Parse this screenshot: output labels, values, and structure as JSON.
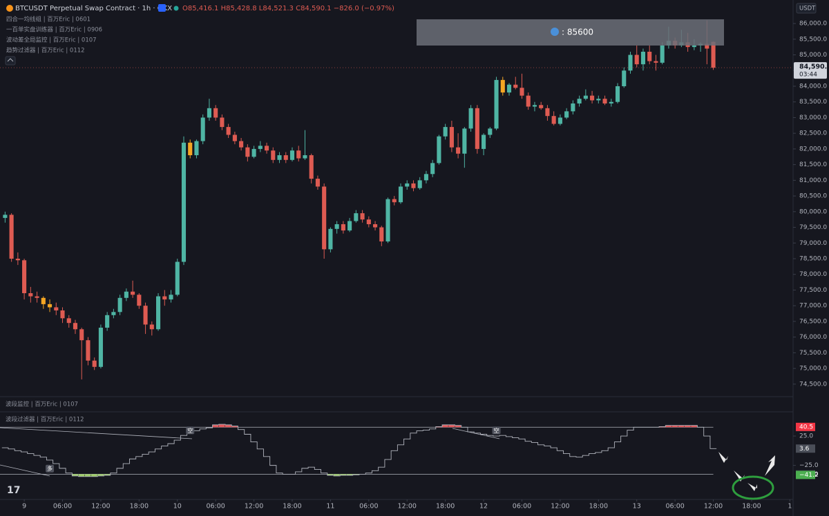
{
  "chart_data": [
    {
      "type": "candlestick",
      "title": "BTCUSDT Perpetual Swap Contract · 1h · OKX",
      "ohlc_summary": "O85,416.1 H85,428.8 L84,521.3 C84,590.1 −826.0 (−0.97%)",
      "indicators": [
        "四合一均线组 | 百万Eric | 0601",
        "一百单实盘训练器 | 百万Eric | 0906",
        "波动差全局监控 | 百万Eric | 0107",
        "趋势过滤器 | 百万Eric | 0112"
      ],
      "currency": "USDT",
      "note": ": 85600",
      "last_price": {
        "value": 84590.1,
        "label": "84,590.1"
      },
      "countdown": "03:44",
      "up_color": "#4fb5a4",
      "down_color": "#de5b52",
      "highlight_candles": [
        6,
        7,
        29,
        78
      ],
      "highlight_color": "#f5a623",
      "candles": [
        [
          79800,
          80000,
          79650,
          79900
        ],
        [
          79900,
          79950,
          78400,
          78500
        ],
        [
          78500,
          78700,
          78300,
          78450
        ],
        [
          78450,
          78500,
          77200,
          77400
        ],
        [
          77400,
          77600,
          77100,
          77300
        ],
        [
          77300,
          77450,
          77100,
          77250
        ],
        [
          77250,
          77300,
          76900,
          77050
        ],
        [
          77050,
          77200,
          76800,
          76950
        ],
        [
          76950,
          77100,
          76700,
          76850
        ],
        [
          76850,
          76950,
          76450,
          76600
        ],
        [
          76600,
          76700,
          76300,
          76450
        ],
        [
          76450,
          76550,
          76100,
          76250
        ],
        [
          76250,
          76300,
          74650,
          75900
        ],
        [
          75900,
          76000,
          75100,
          75250
        ],
        [
          75250,
          75350,
          74950,
          75050
        ],
        [
          75050,
          76400,
          75000,
          76300
        ],
        [
          76300,
          76800,
          76200,
          76700
        ],
        [
          76700,
          76900,
          76600,
          76800
        ],
        [
          76800,
          77350,
          76700,
          77250
        ],
        [
          77250,
          77550,
          77150,
          77450
        ],
        [
          77450,
          77800,
          77250,
          77350
        ],
        [
          77350,
          77400,
          76900,
          77000
        ],
        [
          77000,
          77100,
          76100,
          76400
        ],
        [
          76400,
          76500,
          76050,
          76250
        ],
        [
          76250,
          77400,
          76200,
          77300
        ],
        [
          77300,
          77500,
          77000,
          77200
        ],
        [
          77200,
          77500,
          77100,
          77350
        ],
        [
          77350,
          78500,
          77300,
          78400
        ],
        [
          78400,
          82400,
          78300,
          82200
        ],
        [
          82200,
          82300,
          81700,
          81800
        ],
        [
          81800,
          82300,
          81700,
          82250
        ],
        [
          82250,
          83100,
          82150,
          83000
        ],
        [
          83000,
          83600,
          82900,
          83300
        ],
        [
          83300,
          83400,
          82900,
          83000
        ],
        [
          83000,
          83100,
          82600,
          82700
        ],
        [
          82700,
          82800,
          82350,
          82450
        ],
        [
          82450,
          82550,
          82150,
          82250
        ],
        [
          82250,
          82350,
          81950,
          82050
        ],
        [
          82050,
          82150,
          81600,
          81750
        ],
        [
          81750,
          82100,
          81700,
          82000
        ],
        [
          82000,
          82250,
          81900,
          82100
        ],
        [
          82100,
          82200,
          81850,
          81950
        ],
        [
          81950,
          82050,
          81550,
          81650
        ],
        [
          81650,
          81900,
          81550,
          81800
        ],
        [
          81800,
          81900,
          81550,
          81650
        ],
        [
          81650,
          82050,
          81600,
          81950
        ],
        [
          81950,
          82100,
          81600,
          81700
        ],
        [
          81700,
          82600,
          81650,
          81800
        ],
        [
          81800,
          81850,
          80900,
          81050
        ],
        [
          81050,
          81150,
          80700,
          80800
        ],
        [
          80800,
          80900,
          78500,
          78800
        ],
        [
          78800,
          79500,
          78700,
          79450
        ],
        [
          79450,
          79700,
          79300,
          79600
        ],
        [
          79600,
          79700,
          79300,
          79400
        ],
        [
          79400,
          79800,
          79350,
          79700
        ],
        [
          79700,
          80050,
          79650,
          79950
        ],
        [
          79950,
          80050,
          79650,
          79750
        ],
        [
          79750,
          79850,
          79500,
          79600
        ],
        [
          79600,
          79700,
          79400,
          79500
        ],
        [
          79500,
          79550,
          78900,
          79050
        ],
        [
          79050,
          80450,
          79000,
          80400
        ],
        [
          80400,
          80500,
          80200,
          80300
        ],
        [
          80300,
          80900,
          80250,
          80800
        ],
        [
          80800,
          81000,
          80700,
          80900
        ],
        [
          80900,
          81000,
          80650,
          80750
        ],
        [
          80750,
          81100,
          80700,
          81000
        ],
        [
          81000,
          81300,
          80900,
          81200
        ],
        [
          81200,
          81650,
          81100,
          81550
        ],
        [
          81550,
          82450,
          81500,
          82400
        ],
        [
          82400,
          82800,
          82300,
          82700
        ],
        [
          82700,
          82900,
          81900,
          82050
        ],
        [
          82050,
          82500,
          81700,
          81850
        ],
        [
          81850,
          82700,
          81400,
          82650
        ],
        [
          82650,
          83400,
          82550,
          83300
        ],
        [
          83300,
          83400,
          81850,
          82000
        ],
        [
          82000,
          82500,
          81800,
          82450
        ],
        [
          82450,
          82700,
          82350,
          82650
        ],
        [
          82650,
          84300,
          82600,
          84200
        ],
        [
          84200,
          84300,
          83700,
          83800
        ],
        [
          83800,
          84100,
          83700,
          84050
        ],
        [
          84050,
          84300,
          83900,
          83950
        ],
        [
          83950,
          84400,
          83600,
          83700
        ],
        [
          83700,
          83800,
          83250,
          83350
        ],
        [
          83350,
          83500,
          83200,
          83400
        ],
        [
          83400,
          83500,
          83250,
          83300
        ],
        [
          83300,
          83400,
          82900,
          83050
        ],
        [
          83050,
          83200,
          82750,
          82800
        ],
        [
          82800,
          83100,
          82750,
          83000
        ],
        [
          83000,
          83300,
          82950,
          83200
        ],
        [
          83200,
          83550,
          83100,
          83450
        ],
        [
          83450,
          83700,
          83350,
          83600
        ],
        [
          83600,
          83900,
          83550,
          83700
        ],
        [
          83700,
          83850,
          83450,
          83550
        ],
        [
          83550,
          83700,
          83450,
          83600
        ],
        [
          83600,
          83700,
          83400,
          83450
        ],
        [
          83450,
          83600,
          83350,
          83500
        ],
        [
          83500,
          84100,
          83450,
          84000
        ],
        [
          84000,
          84600,
          83950,
          84500
        ],
        [
          84500,
          85100,
          84400,
          85000
        ],
        [
          85000,
          85300,
          84600,
          84700
        ],
        [
          84700,
          85200,
          84500,
          85100
        ],
        [
          85100,
          85300,
          84700,
          84800
        ],
        [
          84800,
          85000,
          84500,
          84750
        ],
        [
          84750,
          85400,
          84700,
          85300
        ],
        [
          85300,
          85900,
          85200,
          85450
        ],
        [
          85450,
          85550,
          85200,
          85300
        ],
        [
          85300,
          85800,
          85250,
          85400
        ],
        [
          85400,
          85700,
          85100,
          85250
        ],
        [
          85250,
          85500,
          85150,
          85300
        ],
        [
          85300,
          85400,
          85100,
          85350
        ],
        [
          85350,
          86100,
          84700,
          85200
        ],
        [
          85416.1,
          85428.8,
          84521.3,
          84590.1
        ]
      ],
      "xlim": [
        -0.8,
        123.5
      ],
      "xticks": [
        {
          "value": 3,
          "label": "9"
        },
        {
          "value": 9,
          "label": "06:00"
        },
        {
          "value": 15,
          "label": "12:00"
        },
        {
          "value": 21,
          "label": "18:00"
        },
        {
          "value": 27,
          "label": "10"
        },
        {
          "value": 33,
          "label": "06:00"
        },
        {
          "value": 39,
          "label": "12:00"
        },
        {
          "value": 45,
          "label": "18:00"
        },
        {
          "value": 51,
          "label": "11"
        },
        {
          "value": 57,
          "label": "06:00"
        },
        {
          "value": 63,
          "label": "12:00"
        },
        {
          "value": 69,
          "label": "18:00"
        },
        {
          "value": 75,
          "label": "12"
        },
        {
          "value": 81,
          "label": "06:00"
        },
        {
          "value": 87,
          "label": "12:00"
        },
        {
          "value": 93,
          "label": "18:00"
        },
        {
          "value": 99,
          "label": "13"
        },
        {
          "value": 105,
          "label": "06:00"
        },
        {
          "value": 111,
          "label": "12:00"
        },
        {
          "value": 117,
          "label": "18:00"
        },
        {
          "value": 123,
          "label": "1"
        }
      ],
      "ylim": [
        74100,
        86750
      ],
      "yticks": [
        {
          "value": 86000,
          "label": "86,000.0"
        },
        {
          "value": 85500,
          "label": "85,500.0"
        },
        {
          "value": 85000,
          "label": "85,000.0"
        },
        {
          "value": 84500,
          "label": "84,500.0"
        },
        {
          "value": 84000,
          "label": "84,000.0"
        },
        {
          "value": 83500,
          "label": "83,500.0"
        },
        {
          "value": 83000,
          "label": "83,000.0"
        },
        {
          "value": 82500,
          "label": "82,500.0"
        },
        {
          "value": 82000,
          "label": "82,000.0"
        },
        {
          "value": 81500,
          "label": "81,500.0"
        },
        {
          "value": 81000,
          "label": "81,000.0"
        },
        {
          "value": 80500,
          "label": "80,500.0"
        },
        {
          "value": 80000,
          "label": "80,000.0"
        },
        {
          "value": 79500,
          "label": "79,500.0"
        },
        {
          "value": 79000,
          "label": "79,000.0"
        },
        {
          "value": 78500,
          "label": "78,500.0"
        },
        {
          "value": 78000,
          "label": "78,000.0"
        },
        {
          "value": 77500,
          "label": "77,500.0"
        },
        {
          "value": 77000,
          "label": "77,000.0"
        },
        {
          "value": 76500,
          "label": "76,500.0"
        },
        {
          "value": 76000,
          "label": "76,000.0"
        },
        {
          "value": 75500,
          "label": "75,500.0"
        },
        {
          "value": 75000,
          "label": "75,000.0"
        },
        {
          "value": 74500,
          "label": "74,500.0"
        }
      ]
    },
    {
      "type": "line",
      "step": true,
      "subtitle": "波段监控 | 百万Eric | 0107",
      "title": "波段过滤器 | 百万Eric | 0112",
      "color": "#b2b5be",
      "high_color": "#e0575a",
      "low_color": "#9ccc65",
      "values": [
        5,
        3,
        0,
        -2,
        -5,
        -8,
        -11,
        -16,
        -22,
        -30,
        -38,
        -43,
        -44,
        -44,
        -44,
        -43,
        -42,
        -38,
        -30,
        -22,
        -14,
        -10,
        -6,
        -2,
        3,
        8,
        12,
        18,
        26,
        30,
        34,
        37,
        39,
        44,
        45,
        44,
        42,
        36,
        28,
        15,
        3,
        -10,
        -25,
        -38,
        -40,
        -40,
        -36,
        -30,
        -28,
        -32,
        -38,
        -42,
        -43,
        -42,
        -42,
        -41,
        -40,
        -38,
        -34,
        -28,
        -15,
        0,
        10,
        20,
        30,
        34,
        35,
        37,
        41,
        44,
        44,
        43,
        40,
        32,
        30,
        28,
        26,
        25,
        26,
        24,
        22,
        20,
        16,
        14,
        10,
        8,
        5,
        0,
        -5,
        -10,
        -11,
        -8,
        -5,
        -3,
        0,
        5,
        15,
        25,
        35,
        40,
        40,
        40,
        40,
        41,
        43,
        43,
        43,
        43,
        43,
        40,
        25,
        3.6
      ],
      "ylim": [
        -83,
        65
      ],
      "yticks": [
        {
          "value": 25,
          "label": "25.0"
        },
        {
          "value": -25,
          "label": "−25.0"
        }
      ],
      "levels": [
        {
          "value": 40,
          "label": "40.0"
        },
        {
          "value": -40,
          "label": "−40.0"
        }
      ],
      "value_tags": [
        {
          "value": 40.5,
          "label": "40.5",
          "color": "#f23645"
        },
        {
          "value": 3.6,
          "label": "3.6",
          "color": "#4a4e58"
        },
        {
          "value": -41.2,
          "label": "−41.2",
          "color": "#4caf50"
        }
      ],
      "markers": [
        {
          "x": 29,
          "value": 34,
          "label": "空"
        },
        {
          "x": 77,
          "value": 34,
          "label": "空"
        },
        {
          "x": 7,
          "value": -31,
          "label": "多"
        }
      ]
    }
  ]
}
